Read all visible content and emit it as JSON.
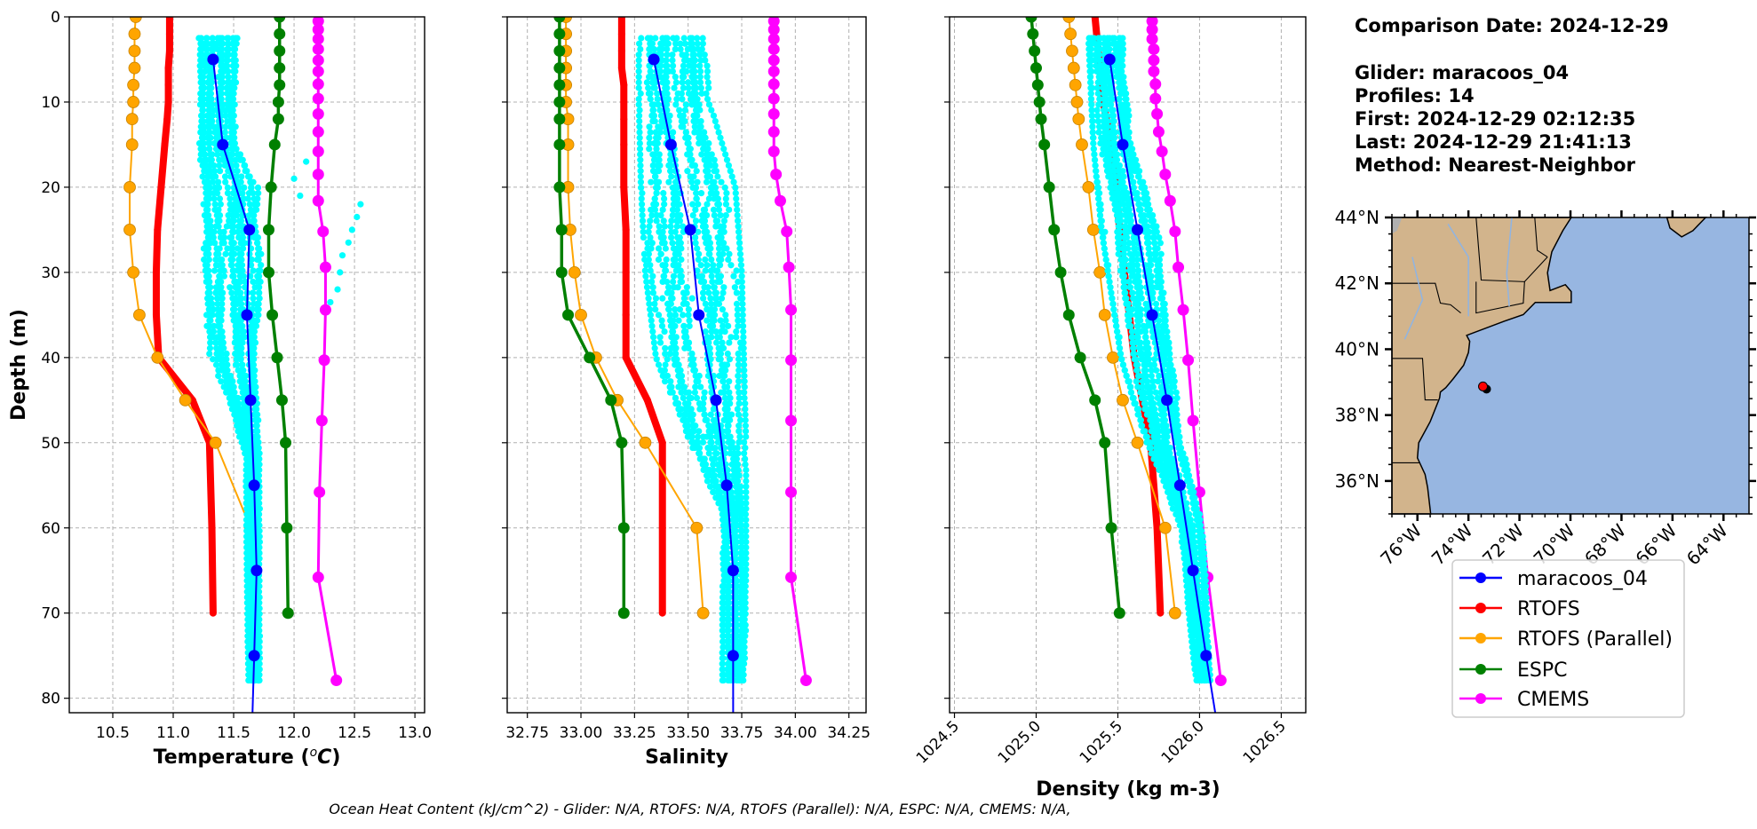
{
  "info": {
    "comparison_date": "Comparison Date: 2024-12-29",
    "glider": "Glider: maracoos_04",
    "profiles": "Profiles: 14",
    "first": "First: 2024-12-29 02:12:35",
    "last": "Last: 2024-12-29 21:41:13",
    "method": "Method: Nearest-Neighbor"
  },
  "footer": "Ocean Heat Content (kJ/cm^2) - Glider: N/A,  RTOFS: N/A,  RTOFS (Parallel): N/A,  ESPC: N/A,  CMEMS: N/A,",
  "ylabel": "Depth (m)",
  "legend": [
    {
      "label": "maracoos_04",
      "color": "#0000ff"
    },
    {
      "label": "RTOFS",
      "color": "#ff0000"
    },
    {
      "label": "RTOFS (Parallel)",
      "color": "#ffa500"
    },
    {
      "label": "ESPC",
      "color": "#008000"
    },
    {
      "label": "CMEMS",
      "color": "#ff00ff"
    }
  ],
  "colors": {
    "glider_raw": "#00ffff",
    "grid": "#b0b0b0",
    "land": "#d2b48c",
    "ocean": "#97b6e1",
    "glider_position": "#ff0000"
  },
  "depths": {
    "model": [
      0,
      2,
      4,
      6,
      8,
      10,
      12,
      15,
      20,
      25,
      30,
      35,
      40,
      45,
      50,
      60,
      70
    ],
    "cmems": [
      0.5,
      1.5,
      2.6,
      3.8,
      5.1,
      6.4,
      7.9,
      9.6,
      11.4,
      13.5,
      15.8,
      18.5,
      21.6,
      25.2,
      29.4,
      34.4,
      40.3,
      47.4,
      55.8,
      65.8,
      77.9
    ],
    "glider_binned": [
      5,
      15,
      25,
      35,
      45,
      55,
      65,
      75
    ]
  },
  "chart_data": [
    {
      "type": "line",
      "id": "temperature",
      "xlabel_prefix": "Temperature (",
      "xlabel_sup": "o",
      "xlabel_unit": "C",
      "xlabel_suffix": ")",
      "ylabel": "Depth (m)",
      "xlim": [
        10.14,
        13.08
      ],
      "ylim": [
        81.7,
        0
      ],
      "xticks": [
        10.5,
        11.0,
        11.5,
        12.0,
        12.5,
        13.0
      ],
      "xtick_labels": [
        "10.5",
        "11.0",
        "11.5",
        "12.0",
        "12.5",
        "13.0"
      ],
      "yticks": [
        0,
        10,
        20,
        30,
        40,
        50,
        60,
        70,
        80
      ],
      "ytick_labels": [
        "0",
        "10",
        "20",
        "30",
        "40",
        "50",
        "60",
        "70",
        "80"
      ],
      "grid": true,
      "series": [
        {
          "name": "RTOFS",
          "depths": "model",
          "values": [
            10.97,
            10.97,
            10.97,
            10.96,
            10.96,
            10.96,
            10.95,
            10.93,
            10.9,
            10.87,
            10.86,
            10.86,
            10.88,
            11.16,
            11.3,
            11.32,
            11.33
          ]
        },
        {
          "name": "RTOFS (Parallel)",
          "depths": "model",
          "values": [
            10.69,
            10.68,
            10.68,
            10.68,
            10.67,
            10.67,
            10.66,
            10.66,
            10.64,
            10.64,
            10.67,
            10.72,
            10.87,
            11.1,
            11.35,
            11.64,
            11.66
          ]
        },
        {
          "name": "ESPC",
          "depths": "model",
          "values": [
            11.88,
            11.88,
            11.88,
            11.88,
            11.88,
            11.87,
            11.87,
            11.84,
            11.81,
            11.79,
            11.79,
            11.82,
            11.86,
            11.9,
            11.93,
            11.94,
            11.95
          ]
        },
        {
          "name": "CMEMS",
          "depths": "cmems",
          "values": [
            12.2,
            12.2,
            12.2,
            12.2,
            12.2,
            12.2,
            12.2,
            12.2,
            12.2,
            12.2,
            12.2,
            12.2,
            12.2,
            12.24,
            12.26,
            12.26,
            12.25,
            12.23,
            12.21,
            12.2,
            12.35
          ]
        },
        {
          "name": "maracoos_04",
          "depths": "glider_binned",
          "values": [
            11.33,
            11.41,
            11.63,
            11.61,
            11.64,
            11.67,
            11.69,
            11.67
          ]
        }
      ],
      "glider_raw_envelope": [
        [
          2.5,
          11.2,
          11.55
        ],
        [
          15,
          11.2,
          11.55
        ],
        [
          20,
          11.22,
          11.75
        ],
        [
          35,
          11.22,
          11.75
        ],
        [
          40,
          11.3,
          11.72
        ],
        [
          45,
          11.45,
          11.72
        ],
        [
          52,
          11.6,
          11.72
        ],
        [
          78.5,
          11.62,
          11.72
        ]
      ],
      "glider_raw_outliers": [
        [
          12.55,
          22
        ],
        [
          12.52,
          23.5
        ],
        [
          12.48,
          25
        ],
        [
          12.45,
          26.5
        ],
        [
          12.4,
          28
        ],
        [
          12.38,
          30
        ],
        [
          12.36,
          32
        ],
        [
          12.3,
          33.5
        ],
        [
          12.1,
          17
        ],
        [
          12.0,
          19
        ],
        [
          12.05,
          21
        ]
      ]
    },
    {
      "type": "line",
      "id": "salinity",
      "xlabel": "Salinity",
      "xlim": [
        32.656,
        34.33
      ],
      "ylim": [
        81.7,
        0
      ],
      "xticks": [
        32.75,
        33.0,
        33.25,
        33.5,
        33.75,
        34.0,
        34.25
      ],
      "xtick_labels": [
        "32.75",
        "33.00",
        "33.25",
        "33.50",
        "33.75",
        "34.00",
        "34.25"
      ],
      "yticks": [
        0,
        10,
        20,
        30,
        40,
        50,
        60,
        70,
        80
      ],
      "grid": true,
      "series": [
        {
          "name": "RTOFS",
          "depths": "model",
          "values": [
            33.19,
            33.19,
            33.19,
            33.19,
            33.2,
            33.2,
            33.2,
            33.2,
            33.2,
            33.21,
            33.21,
            33.21,
            33.21,
            33.31,
            33.38,
            33.38,
            33.38
          ]
        },
        {
          "name": "RTOFS (Parallel)",
          "depths": "model",
          "values": [
            32.93,
            32.93,
            32.93,
            32.93,
            32.93,
            32.93,
            32.94,
            32.94,
            32.94,
            32.95,
            32.97,
            33.0,
            33.07,
            33.17,
            33.3,
            33.54,
            33.57
          ]
        },
        {
          "name": "ESPC",
          "depths": "model",
          "values": [
            32.9,
            32.9,
            32.9,
            32.9,
            32.9,
            32.9,
            32.9,
            32.9,
            32.9,
            32.91,
            32.91,
            32.94,
            33.04,
            33.14,
            33.19,
            33.2,
            33.2
          ]
        },
        {
          "name": "CMEMS",
          "depths": "cmems",
          "values": [
            33.9,
            33.9,
            33.9,
            33.9,
            33.9,
            33.9,
            33.9,
            33.9,
            33.9,
            33.9,
            33.9,
            33.91,
            33.93,
            33.96,
            33.97,
            33.98,
            33.98,
            33.98,
            33.98,
            33.98,
            34.05
          ]
        },
        {
          "name": "maracoos_04",
          "depths": "glider_binned",
          "values": [
            33.34,
            33.42,
            33.51,
            33.55,
            33.63,
            33.68,
            33.71,
            33.71
          ]
        }
      ],
      "glider_raw_envelope": [
        [
          2.5,
          33.27,
          33.58
        ],
        [
          10,
          33.27,
          33.6
        ],
        [
          20,
          33.28,
          33.72
        ],
        [
          30,
          33.3,
          33.75
        ],
        [
          40,
          33.35,
          33.76
        ],
        [
          50,
          33.5,
          33.77
        ],
        [
          58,
          33.66,
          33.77
        ],
        [
          78.5,
          33.66,
          33.77
        ]
      ],
      "glider_raw_outliers": []
    },
    {
      "type": "line",
      "id": "density",
      "xlabel": "Density (kg m-3)",
      "xlim": [
        1024.47,
        1026.65
      ],
      "ylim": [
        81.7,
        0
      ],
      "xticks": [
        1024.5,
        1025.0,
        1025.5,
        1026.0,
        1026.5
      ],
      "xtick_labels": [
        "1024.5",
        "1025.0",
        "1025.5",
        "1026.0",
        "1026.5"
      ],
      "yticks": [
        0,
        10,
        20,
        30,
        40,
        50,
        60,
        70,
        80
      ],
      "grid": true,
      "series": [
        {
          "name": "RTOFS",
          "depths": "model",
          "values": [
            1025.36,
            1025.37,
            1025.38,
            1025.39,
            1025.4,
            1025.41,
            1025.43,
            1025.46,
            1025.49,
            1025.51,
            1025.54,
            1025.57,
            1025.6,
            1025.65,
            1025.7,
            1025.74,
            1025.76
          ]
        },
        {
          "name": "RTOFS (Parallel)",
          "depths": "model",
          "values": [
            1025.2,
            1025.21,
            1025.22,
            1025.23,
            1025.24,
            1025.25,
            1025.26,
            1025.28,
            1025.32,
            1025.35,
            1025.39,
            1025.42,
            1025.47,
            1025.53,
            1025.62,
            1025.79,
            1025.85
          ]
        },
        {
          "name": "ESPC",
          "depths": "model",
          "values": [
            1024.97,
            1024.98,
            1024.99,
            1025.0,
            1025.01,
            1025.02,
            1025.03,
            1025.05,
            1025.08,
            1025.11,
            1025.15,
            1025.2,
            1025.27,
            1025.36,
            1025.42,
            1025.46,
            1025.51
          ]
        },
        {
          "name": "CMEMS",
          "depths": "cmems",
          "values": [
            1025.71,
            1025.71,
            1025.71,
            1025.72,
            1025.72,
            1025.72,
            1025.73,
            1025.73,
            1025.74,
            1025.75,
            1025.77,
            1025.79,
            1025.82,
            1025.85,
            1025.87,
            1025.9,
            1025.93,
            1025.96,
            1026.0,
            1026.05,
            1026.13
          ]
        },
        {
          "name": "maracoos_04",
          "depths": "glider_binned",
          "values": [
            1025.45,
            1025.53,
            1025.62,
            1025.71,
            1025.8,
            1025.88,
            1025.96,
            1026.04
          ]
        }
      ],
      "glider_raw_envelope": [
        [
          2.5,
          1025.32,
          1025.54
        ],
        [
          15,
          1025.35,
          1025.6
        ],
        [
          25,
          1025.4,
          1025.78
        ],
        [
          40,
          1025.52,
          1025.87
        ],
        [
          50,
          1025.67,
          1025.91
        ],
        [
          60,
          1025.88,
          1026.02
        ],
        [
          78.5,
          1025.98,
          1026.07
        ]
      ],
      "glider_raw_outliers": []
    },
    {
      "type": "map",
      "id": "location-map",
      "lon_range": [
        -77,
        -63
      ],
      "lat_range": [
        35,
        44
      ],
      "lat_ticks": [
        36,
        38,
        40,
        42,
        44
      ],
      "lat_tick_labels": [
        "36°N",
        "38°N",
        "40°N",
        "42°N",
        "44°N"
      ],
      "lon_ticks": [
        -76,
        -74,
        -72,
        -70,
        -68,
        -66,
        -64
      ],
      "lon_tick_labels": [
        "76°W",
        "74°W",
        "72°W",
        "70°W",
        "68°W",
        "66°W",
        "64°W"
      ],
      "glider_position": [
        -73.43,
        38.87
      ],
      "land_outline": [
        [
          -77,
          44
        ],
        [
          -69.97,
          44
        ],
        [
          -70.3,
          43.6
        ],
        [
          -70.73,
          42.96
        ],
        [
          -70.9,
          42.32
        ],
        [
          -70.8,
          41.78
        ],
        [
          -70.2,
          41.96
        ],
        [
          -69.97,
          41.75
        ],
        [
          -69.97,
          41.42
        ],
        [
          -70.44,
          41.42
        ],
        [
          -71.38,
          41.42
        ],
        [
          -71.85,
          41.05
        ],
        [
          -72.6,
          40.85
        ],
        [
          -74.07,
          40.42
        ],
        [
          -73.95,
          40.24
        ],
        [
          -74.0,
          39.9
        ],
        [
          -74.19,
          39.51
        ],
        [
          -74.6,
          39.1
        ],
        [
          -74.89,
          38.83
        ],
        [
          -75.1,
          38.7
        ],
        [
          -75.13,
          38.52
        ],
        [
          -75.5,
          37.8
        ],
        [
          -75.95,
          37.16
        ],
        [
          -76.0,
          36.7
        ],
        [
          -75.7,
          36.2
        ],
        [
          -75.6,
          35.8
        ],
        [
          -75.48,
          35
        ],
        [
          -77,
          35
        ]
      ],
      "nova_scotia_outline": [
        [
          -66.22,
          44
        ],
        [
          -66.1,
          43.68
        ],
        [
          -65.64,
          43.41
        ],
        [
          -65.2,
          43.6
        ],
        [
          -64.7,
          44
        ]
      ]
    }
  ]
}
